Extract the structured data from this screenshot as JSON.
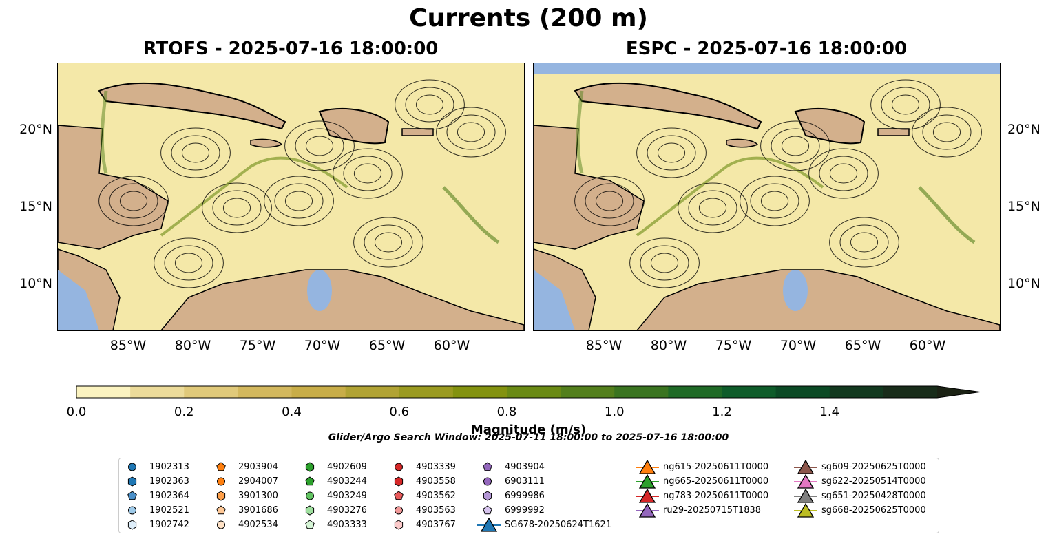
{
  "title": "Currents (200 m)",
  "panels": [
    {
      "title": "RTOFS - 2025-07-16 18:00:00"
    },
    {
      "title": "ESPC - 2025-07-16 18:00:00"
    }
  ],
  "lon_ticks": [
    "85°W",
    "80°W",
    "75°W",
    "70°W",
    "65°W",
    "60°W"
  ],
  "lat_ticks": [
    "20°N",
    "15°N",
    "10°N"
  ],
  "colorbar": {
    "label": "Magnitude (m/s)",
    "ticks": [
      "0.0",
      "0.2",
      "0.4",
      "0.6",
      "0.8",
      "1.0",
      "1.2",
      "1.4"
    ],
    "colors": [
      "#fbf3c0",
      "#ecdb9a",
      "#e0c97a",
      "#d3b85e",
      "#c8ad48",
      "#b1a334",
      "#9a9a20",
      "#83920f",
      "#6a8a14",
      "#537f1c",
      "#3a7420",
      "#1f6a26",
      "#0e5c2a",
      "#0b4a25",
      "#12391f",
      "#182c1a",
      "#1b2214"
    ],
    "extend": "max"
  },
  "colors": {
    "land": "#d3b08c",
    "ocean": "#95b5e0",
    "field": "#f4e8a8"
  },
  "search_window": "Glider/Argo Search Window: 2025-07-11 18:00:00 to 2025-07-16 18:00:00",
  "legend": {
    "argo": [
      {
        "label": "1902313",
        "shape": "circle",
        "color": "#1f77b4"
      },
      {
        "label": "1902363",
        "shape": "hexagon",
        "color": "#1f77b4"
      },
      {
        "label": "1902364",
        "shape": "pentagon",
        "color": "#4a8fc8"
      },
      {
        "label": "1902521",
        "shape": "circle",
        "color": "#9ecae9"
      },
      {
        "label": "1902742",
        "shape": "hexagon",
        "color": "#deeefa"
      },
      {
        "label": "2903904",
        "shape": "pentagon",
        "color": "#ff7f0e"
      },
      {
        "label": "2904007",
        "shape": "circle",
        "color": "#ff7f0e"
      },
      {
        "label": "3901300",
        "shape": "hexagon",
        "color": "#ffa04a"
      },
      {
        "label": "3901686",
        "shape": "pentagon",
        "color": "#ffc896"
      },
      {
        "label": "4902534",
        "shape": "circle",
        "color": "#ffe2c6"
      },
      {
        "label": "4902609",
        "shape": "hexagon",
        "color": "#2ca02c"
      },
      {
        "label": "4903244",
        "shape": "pentagon",
        "color": "#2ca02c"
      },
      {
        "label": "4903249",
        "shape": "circle",
        "color": "#62c462"
      },
      {
        "label": "4903276",
        "shape": "hexagon",
        "color": "#9fe09f"
      },
      {
        "label": "4903333",
        "shape": "pentagon",
        "color": "#d6f5d6"
      },
      {
        "label": "4903339",
        "shape": "circle",
        "color": "#d62728"
      },
      {
        "label": "4903558",
        "shape": "hexagon",
        "color": "#d62728"
      },
      {
        "label": "4903562",
        "shape": "pentagon",
        "color": "#e8595a"
      },
      {
        "label": "4903563",
        "shape": "circle",
        "color": "#f29a9a"
      },
      {
        "label": "4903767",
        "shape": "hexagon",
        "color": "#fbcaca"
      },
      {
        "label": "4903904",
        "shape": "pentagon",
        "color": "#9467bd"
      },
      {
        "label": "6903111",
        "shape": "circle",
        "color": "#9467bd"
      },
      {
        "label": "6999986",
        "shape": "hexagon",
        "color": "#b497d6"
      },
      {
        "label": "6999992",
        "shape": "pentagon",
        "color": "#d7c4ee"
      }
    ],
    "gliders": [
      {
        "label": "SG678-20250624T1621",
        "color": "#1f77b4"
      },
      {
        "label": "ng615-20250611T0000",
        "color": "#ff7f0e"
      },
      {
        "label": "ng665-20250611T0000",
        "color": "#2ca02c"
      },
      {
        "label": "ng783-20250611T0000",
        "color": "#d62728"
      },
      {
        "label": "ru29-20250715T1838",
        "color": "#9467bd"
      },
      {
        "label": "sg609-20250625T0000",
        "color": "#8c564b"
      },
      {
        "label": "sg622-20250514T0000",
        "color": "#e377c2"
      },
      {
        "label": "sg651-20250428T0000",
        "color": "#7f7f7f"
      },
      {
        "label": "sg668-20250625T0000",
        "color": "#bcbd22"
      }
    ]
  }
}
